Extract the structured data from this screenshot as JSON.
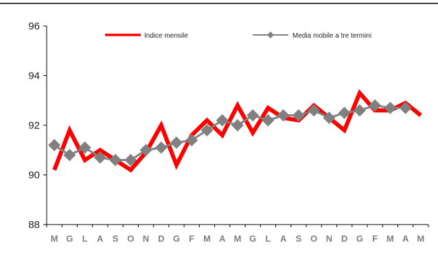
{
  "chart_data": {
    "type": "line",
    "categories": [
      "M",
      "G",
      "L",
      "A",
      "S",
      "O",
      "N",
      "D",
      "G",
      "F",
      "M",
      "A",
      "M",
      "G",
      "L",
      "A",
      "S",
      "O",
      "N",
      "D",
      "G",
      "F",
      "M",
      "A",
      "M"
    ],
    "ylim": [
      88,
      96
    ],
    "yticks": [
      88,
      90,
      92,
      94,
      96
    ],
    "grid": false,
    "legend_placement": "top",
    "series": [
      {
        "name": "Indice mensile",
        "color": "#ff0000",
        "values": [
          90.2,
          91.8,
          90.6,
          91.0,
          90.6,
          90.2,
          90.9,
          92.0,
          90.4,
          91.6,
          92.2,
          91.6,
          92.8,
          91.7,
          92.7,
          92.3,
          92.2,
          92.8,
          92.3,
          91.8,
          93.3,
          92.6,
          92.6,
          92.9,
          92.4
        ]
      },
      {
        "name": "Media mobile a tre termini",
        "color": "#808080",
        "values": [
          91.2,
          90.8,
          91.1,
          90.7,
          90.6,
          90.6,
          91.0,
          91.1,
          91.3,
          91.4,
          91.8,
          92.2,
          92.0,
          92.4,
          92.2,
          92.4,
          92.4,
          92.6,
          92.3,
          92.5,
          92.6,
          92.8,
          92.7,
          92.7,
          null
        ]
      }
    ]
  }
}
